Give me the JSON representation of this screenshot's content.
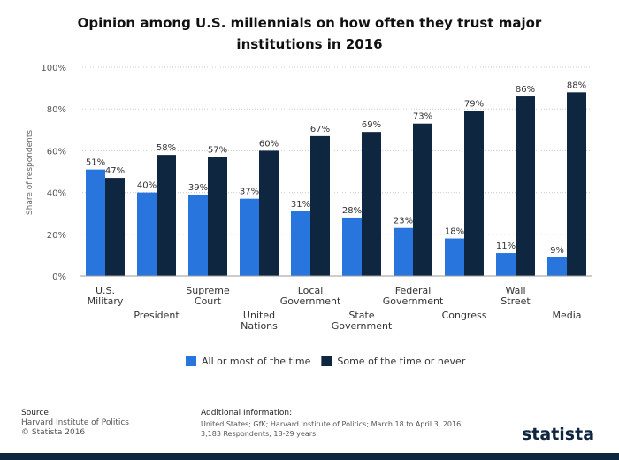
{
  "chart_data": {
    "type": "bar",
    "title": "Opinion among U.S. millennials on how often they trust major institutions in 2016",
    "y_label": "Share of respondents",
    "categories": [
      "U.S. Military",
      "President",
      "Supreme Court",
      "United Nations",
      "Local Government",
      "State Government",
      "Federal Government",
      "Congress",
      "Wall Street",
      "Media"
    ],
    "series": [
      {
        "name": "All or most of the time",
        "color": "#2876dd",
        "values": [
          51,
          40,
          39,
          37,
          31,
          28,
          23,
          18,
          11,
          9
        ],
        "value_labels": [
          "51%",
          "40%",
          "39%",
          "37%",
          "31%",
          "28%",
          "23%",
          "18%",
          "11%",
          "9%"
        ]
      },
      {
        "name": "Some of the time or never",
        "color": "#0f2640",
        "values": [
          47,
          58,
          57,
          60,
          67,
          69,
          73,
          79,
          86,
          88
        ],
        "value_labels": [
          "47%",
          "58%",
          "57%",
          "60%",
          "67%",
          "69%",
          "73%",
          "79%",
          "86%",
          "88%"
        ]
      }
    ],
    "ylim": [
      0,
      100
    ],
    "yticks": [
      {
        "value": 0,
        "label": "0%"
      },
      {
        "value": 20,
        "label": "20%"
      },
      {
        "value": 40,
        "label": "40%"
      },
      {
        "value": 60,
        "label": "60%"
      },
      {
        "value": 80,
        "label": "80%"
      },
      {
        "value": 100,
        "label": "100%"
      }
    ],
    "grid": true,
    "source_label": "Source:",
    "source": "Harvard Institute of Politics",
    "copyright": "© Statista 2016",
    "additional_info_label": "Additional Information:",
    "additional_info": [
      "United States; GfK; Harvard Institute of Politics; March 18 to April 3, 2016;",
      "3,183 Respondents; 18-29 years"
    ],
    "brand": "statista"
  }
}
